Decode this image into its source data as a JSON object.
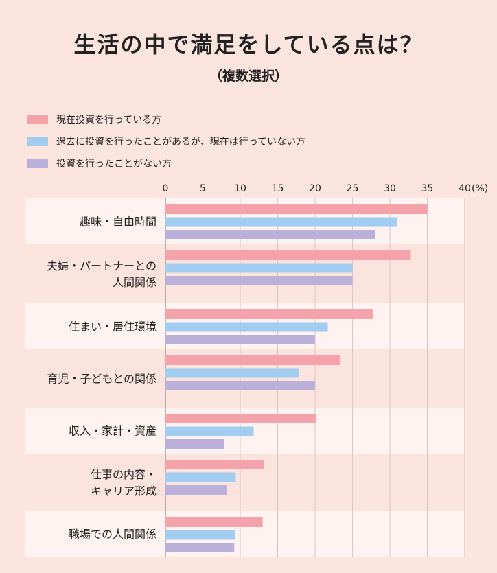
{
  "title": "生活の中で満足をしている点は？",
  "subtitle": "（複数選択）",
  "chart_data": {
    "type": "bar",
    "orientation": "horizontal",
    "unit_label": "(%)",
    "xlim": [
      0,
      40
    ],
    "ticks": [
      "0",
      "5",
      "10",
      "15",
      "20",
      "25",
      "30",
      "35",
      "40"
    ],
    "grid": true,
    "legend_position": "top-left",
    "categories": [
      [
        "趣味・自由時間"
      ],
      [
        "夫婦・パートナーとの",
        "人間関係"
      ],
      [
        "住まい・居住環境"
      ],
      [
        "育児・子どもとの関係"
      ],
      [
        "収入・家計・資産"
      ],
      [
        "仕事の内容・",
        "キャリア形成"
      ],
      [
        "職場での人間関係"
      ]
    ],
    "series": [
      {
        "name": "現在投資を行っている方",
        "color": "#f4a3aa",
        "values": [
          35,
          32.7,
          27.7,
          23.3,
          20.1,
          13.2,
          13
        ]
      },
      {
        "name": "過去に投資を行ったことがあるが、現在は行っていない方",
        "color": "#a2ccf0",
        "values": [
          31,
          25,
          21.7,
          17.8,
          11.8,
          9.4,
          9.3
        ]
      },
      {
        "name": "投資を行ったことがない方",
        "color": "#bbb0d9",
        "values": [
          28,
          25,
          20,
          20,
          7.8,
          8.2,
          9.2
        ]
      }
    ]
  }
}
